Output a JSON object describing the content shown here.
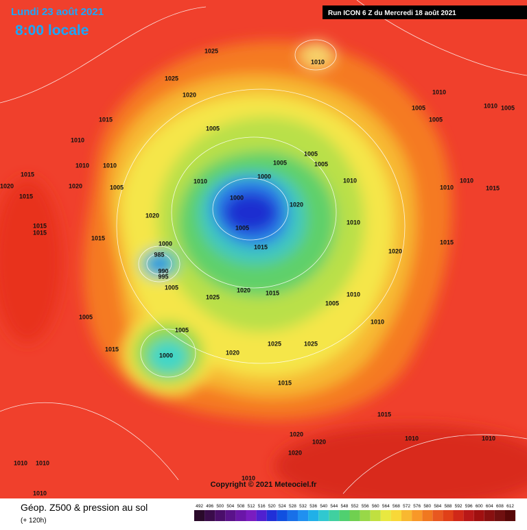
{
  "header": {
    "date": "Lundi 23 août 2021",
    "time": "8:00 locale",
    "run": "Run ICON 6 Z du Mercredi 18 août 2021"
  },
  "copyright": "Copyright © 2021 Meteociel.fr",
  "footer": {
    "title": "Géop. Z500 & pression au sol",
    "lead": "(+ 120h)"
  },
  "scale": [
    "492",
    "496",
    "500",
    "504",
    "508",
    "512",
    "516",
    "520",
    "524",
    "528",
    "532",
    "536",
    "540",
    "544",
    "548",
    "552",
    "556",
    "560",
    "564",
    "568",
    "572",
    "576",
    "580",
    "584",
    "588",
    "592",
    "596",
    "600",
    "604",
    "608",
    "612"
  ],
  "pressure_labels": [
    "1025",
    "1010",
    "1025",
    "1020",
    "1015",
    "1005",
    "1010",
    "1005",
    "1005",
    "1010",
    "1005",
    "1010",
    "1010",
    "1010",
    "1015",
    "1020",
    "1020",
    "1015",
    "1005",
    "1010",
    "1000",
    "1005",
    "1005",
    "1005",
    "1010",
    "1000",
    "1020",
    "1005",
    "1015",
    "1010",
    "1020",
    "1015",
    "1015",
    "1015",
    "985",
    "1000",
    "990",
    "995",
    "1005",
    "1025",
    "1020",
    "1015",
    "1005",
    "1010",
    "1020",
    "1010",
    "1005",
    "1005",
    "1000",
    "1020",
    "1025",
    "1025",
    "1015",
    "1015",
    "1020",
    "1020",
    "1020",
    "1010",
    "1010",
    "1010",
    "1010",
    "1010",
    "1010",
    "1015",
    "1015",
    "1010",
    "1010",
    "1015"
  ]
}
